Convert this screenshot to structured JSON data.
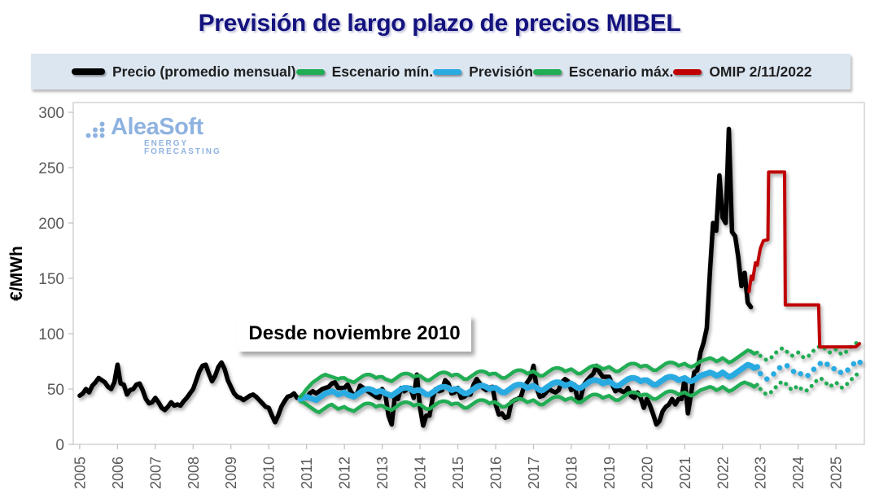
{
  "title": "Previsión de largo plazo de precios MIBEL",
  "legend": {
    "items": [
      {
        "label": "Precio (promedio mensual)",
        "color": "#000000"
      },
      {
        "label": "Escenario mín.",
        "color": "#21ad54"
      },
      {
        "label": "Previsión",
        "color": "#29abe2"
      },
      {
        "label": "Escenario máx.",
        "color": "#21ad54"
      },
      {
        "label": "OMIP 2/11/2022",
        "color": "#c00000"
      }
    ]
  },
  "watermark": {
    "name": "AleaSoft",
    "subtitle": "ENERGY FORECASTING",
    "color": "#8fb3e0"
  },
  "chart_data": {
    "type": "line",
    "title": "Previsión de largo plazo de precios MIBEL",
    "xlabel": "",
    "ylabel": "€/MWh",
    "xlim": [
      2004.83,
      2025.75
    ],
    "ylim": [
      0,
      300
    ],
    "y_ticks": [
      0,
      50,
      100,
      150,
      200,
      250,
      300
    ],
    "x_ticks": [
      2005,
      2006,
      2007,
      2008,
      2009,
      2010,
      2011,
      2012,
      2013,
      2014,
      2015,
      2016,
      2017,
      2018,
      2019,
      2020,
      2021,
      2022,
      2023,
      2024,
      2025
    ],
    "grid": false,
    "legend_position": "top",
    "annotations": [
      {
        "text": "Desde noviembre 2010",
        "x": 2013.5,
        "y": 95
      }
    ],
    "series": [
      {
        "id": "precio",
        "name": "Precio (promedio mensual)",
        "color": "#000000",
        "width": 5.5,
        "start": 2005.0,
        "values": [
          44,
          46,
          50,
          47,
          53,
          56,
          60,
          58,
          56,
          52,
          50,
          56,
          72,
          55,
          54,
          45,
          49,
          50,
          54,
          55,
          49,
          41,
          37,
          38,
          42,
          38,
          33,
          31,
          34,
          38,
          35,
          36,
          35,
          39,
          42,
          46,
          50,
          58,
          66,
          71,
          72,
          64,
          57,
          62,
          70,
          74,
          68,
          58,
          52,
          46,
          43,
          42,
          40,
          42,
          44,
          45,
          43,
          40,
          37,
          34,
          33,
          26,
          20,
          26,
          34,
          39,
          43,
          44,
          46,
          42,
          42,
          44,
          42,
          46,
          48,
          46,
          48,
          50,
          51,
          52,
          55,
          56,
          51,
          51,
          51,
          54,
          48,
          44,
          46,
          53,
          51,
          49,
          47,
          45,
          43,
          42,
          50,
          45,
          26,
          18,
          43,
          41,
          51,
          48,
          50,
          51,
          42,
          63,
          33,
          17,
          26,
          26,
          42,
          50,
          48,
          49,
          58,
          55,
          46,
          47,
          51,
          42,
          43,
          45,
          45,
          54,
          59,
          55,
          51,
          49,
          51,
          52,
          36,
          27,
          28,
          24,
          25,
          38,
          40,
          41,
          43,
          52,
          56,
          60,
          71,
          51,
          43,
          44,
          47,
          50,
          48,
          47,
          49,
          56,
          59,
          57,
          49,
          54,
          40,
          42,
          54,
          58,
          61,
          64,
          71,
          65,
          61,
          61,
          61,
          54,
          48,
          50,
          48,
          47,
          51,
          44,
          42,
          47,
          42,
          33,
          41,
          35,
          27,
          18,
          21,
          30,
          34,
          36,
          41,
          36,
          41,
          41,
          60,
          28,
          45,
          65,
          67,
          83,
          92,
          105,
          156,
          200,
          193,
          243,
          205,
          200,
          285,
          192,
          188,
          169,
          143,
          155,
          128,
          124
        ]
      },
      {
        "id": "esc-min-solid",
        "name": "Escenario mín.",
        "color": "#21ad54",
        "width": 4.5,
        "start": 2010.8333,
        "values": [
          39,
          38,
          36,
          34,
          32,
          30,
          29,
          31,
          33,
          35,
          36,
          34,
          32,
          33,
          34,
          32,
          31,
          30,
          32,
          34,
          36,
          37,
          37,
          36,
          34,
          35,
          35,
          33,
          32,
          31,
          33,
          35,
          37,
          38,
          38,
          37,
          35,
          36,
          36,
          34,
          32,
          32,
          34,
          36,
          38,
          39,
          39,
          38,
          36,
          37,
          37,
          35,
          33,
          33,
          35,
          37,
          39,
          40,
          40,
          39,
          37,
          38,
          38,
          36,
          34,
          34,
          36,
          38,
          40,
          41,
          41,
          40,
          38,
          39,
          40,
          38,
          36,
          36,
          38,
          40,
          42,
          43,
          43,
          42,
          40,
          41,
          42,
          40,
          38,
          38,
          40,
          42,
          44,
          45,
          45,
          44,
          42,
          43,
          44,
          42,
          40,
          40,
          42,
          44,
          46,
          47,
          47,
          46,
          44,
          45,
          45,
          43,
          41,
          41,
          43,
          45,
          47,
          48,
          48,
          47,
          45,
          46,
          47,
          45,
          44,
          45,
          47,
          49,
          50,
          51,
          52,
          51,
          49,
          50,
          52,
          50,
          48,
          49,
          51,
          53,
          55,
          56,
          55,
          54,
          52,
          54
        ]
      },
      {
        "id": "esc-min-dotted",
        "name": "Escenario mín. (previsión punteada)",
        "color": "#21ad54",
        "width": 5,
        "dash": "0.1 8.2",
        "start": 2023.0,
        "values": [
          50,
          47,
          45,
          46,
          49,
          52,
          55,
          57,
          55,
          52,
          49,
          51,
          53,
          50,
          48,
          49,
          52,
          55,
          58,
          60,
          58,
          55,
          52,
          54,
          56,
          53,
          51,
          53,
          56,
          59,
          62,
          64,
          62
        ]
      },
      {
        "id": "prevision-solid",
        "name": "Previsión",
        "color": "#29abe2",
        "width": 7,
        "start": 2010.8333,
        "values": [
          41,
          42,
          43,
          42,
          41,
          40,
          42,
          44,
          46,
          47,
          48,
          47,
          45,
          46,
          47,
          45,
          44,
          43,
          45,
          47,
          49,
          50,
          50,
          49,
          47,
          48,
          48,
          46,
          45,
          44,
          46,
          48,
          50,
          51,
          51,
          50,
          48,
          49,
          49,
          47,
          45,
          45,
          47,
          49,
          51,
          52,
          52,
          51,
          49,
          50,
          50,
          48,
          46,
          46,
          48,
          50,
          52,
          53,
          53,
          52,
          50,
          51,
          51,
          49,
          47,
          47,
          49,
          51,
          53,
          54,
          54,
          53,
          51,
          52,
          53,
          51,
          49,
          49,
          51,
          53,
          55,
          56,
          56,
          55,
          53,
          54,
          55,
          53,
          51,
          51,
          53,
          55,
          57,
          58,
          58,
          57,
          55,
          56,
          57,
          55,
          53,
          53,
          55,
          57,
          59,
          60,
          60,
          59,
          57,
          58,
          58,
          56,
          54,
          54,
          56,
          58,
          60,
          61,
          61,
          60,
          58,
          59,
          60,
          58,
          57,
          58,
          60,
          62,
          63,
          64,
          65,
          64,
          62,
          63,
          65,
          63,
          61,
          62,
          64,
          66,
          68,
          70,
          72,
          71,
          69,
          70
        ]
      },
      {
        "id": "prevision-dotted",
        "name": "Previsión (punteada)",
        "color": "#29abe2",
        "width": 6.5,
        "dash": "0.1 10.5",
        "start": 2023.0,
        "values": [
          64,
          61,
          59,
          60,
          63,
          66,
          69,
          71,
          72,
          70,
          67,
          65,
          66,
          63,
          61,
          62,
          65,
          68,
          71,
          73,
          75,
          73,
          70,
          68,
          69,
          66,
          64,
          65,
          68,
          71,
          74,
          76,
          73
        ]
      },
      {
        "id": "esc-max-solid",
        "name": "Escenario máx.",
        "color": "#21ad54",
        "width": 4.5,
        "start": 2010.8333,
        "values": [
          43,
          46,
          50,
          53,
          56,
          58,
          60,
          62,
          63,
          62,
          61,
          60,
          59,
          60,
          60,
          58,
          57,
          56,
          58,
          60,
          62,
          63,
          63,
          62,
          60,
          61,
          61,
          59,
          58,
          57,
          59,
          61,
          63,
          64,
          64,
          63,
          61,
          62,
          62,
          60,
          58,
          58,
          60,
          62,
          64,
          65,
          65,
          64,
          62,
          63,
          63,
          61,
          59,
          59,
          61,
          63,
          65,
          66,
          66,
          65,
          63,
          64,
          64,
          62,
          60,
          60,
          62,
          64,
          66,
          67,
          67,
          66,
          64,
          65,
          66,
          64,
          62,
          62,
          64,
          66,
          68,
          69,
          69,
          68,
          66,
          67,
          68,
          66,
          64,
          64,
          66,
          68,
          70,
          71,
          71,
          70,
          68,
          69,
          70,
          68,
          66,
          66,
          68,
          70,
          72,
          73,
          73,
          72,
          70,
          71,
          71,
          69,
          67,
          67,
          69,
          71,
          73,
          74,
          74,
          73,
          71,
          72,
          73,
          71,
          70,
          71,
          73,
          75,
          76,
          77,
          78,
          77,
          75,
          76,
          78,
          76,
          74,
          75,
          77,
          79,
          81,
          83,
          85,
          84,
          82,
          83
        ]
      },
      {
        "id": "esc-max-dotted",
        "name": "Escenario máx. (previsión punteada)",
        "color": "#21ad54",
        "width": 5,
        "dash": "0.1 8.2",
        "start": 2023.0,
        "values": [
          80,
          78,
          76,
          77,
          80,
          83,
          85,
          87,
          85,
          82,
          80,
          81,
          83,
          80,
          78,
          79,
          82,
          85,
          87,
          89,
          88,
          85,
          83,
          84,
          86,
          83,
          81,
          83,
          86,
          89,
          91,
          92,
          90
        ]
      },
      {
        "id": "omip",
        "name": "OMIP 2/11/2022",
        "color": "#c00000",
        "width": 4,
        "x": [
          2022.7,
          2022.76,
          2022.8,
          2022.87,
          2022.92,
          2023.0,
          2023.08,
          2023.2,
          2023.22,
          2023.64,
          2023.66,
          2024.54,
          2024.57,
          2025.52,
          2025.62
        ],
        "values": [
          138,
          152,
          149,
          164,
          162,
          177,
          184,
          185,
          246,
          246,
          126,
          126,
          88,
          88,
          91
        ]
      }
    ]
  }
}
